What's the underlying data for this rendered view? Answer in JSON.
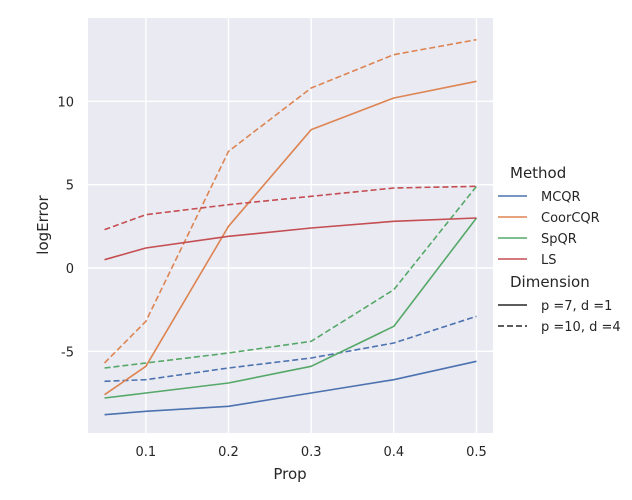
{
  "chart_data": {
    "type": "line",
    "title": "",
    "xlabel": "Prop",
    "ylabel": "logError",
    "xlim": [
      0.03,
      0.52
    ],
    "ylim": [
      -9.9,
      15.0
    ],
    "xticks": [
      0.1,
      0.2,
      0.3,
      0.4,
      0.5
    ],
    "yticks": [
      -5,
      0,
      5,
      10
    ],
    "grid": true,
    "x": [
      0.05,
      0.1,
      0.2,
      0.3,
      0.4,
      0.5
    ],
    "legend_position": "right",
    "legend": {
      "hue_title": "Method",
      "style_title": "Dimension",
      "methods": [
        {
          "name": "MCQR",
          "color": "#4c72b0"
        },
        {
          "name": "CoorCQR",
          "color": "#dd8452"
        },
        {
          "name": "SpQR",
          "color": "#55a868"
        },
        {
          "name": "LS",
          "color": "#c44e52"
        }
      ],
      "dimensions": [
        {
          "name": "p =7, d =1",
          "dash": "solid"
        },
        {
          "name": "p =10, d =4",
          "dash": "dashed"
        }
      ]
    },
    "series": [
      {
        "method": "MCQR",
        "dimension": "p =7, d =1",
        "color": "#4c72b0",
        "dash": "solid",
        "values": [
          -8.8,
          -8.6,
          -8.3,
          -7.5,
          -6.7,
          -5.6
        ]
      },
      {
        "method": "MCQR",
        "dimension": "p =10, d =4",
        "color": "#4c72b0",
        "dash": "dashed",
        "values": [
          -6.8,
          -6.7,
          -6.0,
          -5.4,
          -4.5,
          -2.9
        ]
      },
      {
        "method": "CoorCQR",
        "dimension": "p =7, d =1",
        "color": "#dd8452",
        "dash": "solid",
        "values": [
          -7.6,
          -5.9,
          2.5,
          8.3,
          10.2,
          11.2
        ]
      },
      {
        "method": "CoorCQR",
        "dimension": "p =10, d =4",
        "color": "#dd8452",
        "dash": "dashed",
        "values": [
          -5.7,
          -3.2,
          7.0,
          10.8,
          12.8,
          13.7
        ]
      },
      {
        "method": "SpQR",
        "dimension": "p =7, d =1",
        "color": "#55a868",
        "dash": "solid",
        "values": [
          -7.8,
          -7.5,
          -6.9,
          -5.9,
          -3.5,
          3.0
        ]
      },
      {
        "method": "SpQR",
        "dimension": "p =10, d =4",
        "color": "#55a868",
        "dash": "dashed",
        "values": [
          -6.0,
          -5.7,
          -5.1,
          -4.4,
          -1.3,
          4.9
        ]
      },
      {
        "method": "LS",
        "dimension": "p =7, d =1",
        "color": "#c44e52",
        "dash": "solid",
        "values": [
          0.5,
          1.2,
          1.9,
          2.4,
          2.8,
          3.0
        ]
      },
      {
        "method": "LS",
        "dimension": "p =10, d =4",
        "color": "#c44e52",
        "dash": "dashed",
        "values": [
          2.3,
          3.2,
          3.8,
          4.3,
          4.8,
          4.9
        ]
      }
    ]
  }
}
